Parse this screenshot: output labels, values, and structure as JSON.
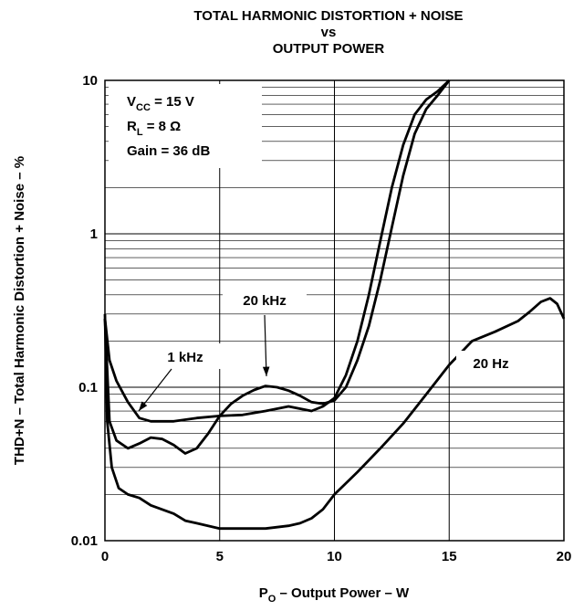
{
  "chart_data": {
    "type": "line",
    "title": [
      "TOTAL HARMONIC DISTORTION + NOISE",
      "vs",
      "OUTPUT POWER"
    ],
    "xlabel": {
      "main": "P",
      "sub": "O",
      "rest": " – Output Power – W"
    },
    "ylabel": "THD+N – Total Harmonic Distortion + Noise – %",
    "annotations": [
      {
        "main": "V",
        "sub": "CC",
        "rest": " = 15 V"
      },
      {
        "main": "R",
        "sub": "L",
        "rest": " = 8 Ω"
      },
      {
        "main": "Gain = 36 dB",
        "sub": "",
        "rest": ""
      }
    ],
    "xlim": [
      0,
      20
    ],
    "xticks": [
      0,
      5,
      10,
      15,
      20
    ],
    "ylim": [
      0.01,
      10
    ],
    "yticks": [
      0.01,
      0.1,
      1,
      10
    ],
    "log_y": true,
    "grid": true,
    "minor_grid": true,
    "series": [
      {
        "name": "1 kHz",
        "color": "#000000",
        "x": [
          0,
          0.2,
          0.5,
          1,
          1.5,
          2,
          3,
          4,
          5,
          6,
          7,
          8,
          9,
          9.5,
          10,
          10.5,
          11,
          11.5,
          12,
          12.5,
          13,
          13.5,
          14,
          14.5,
          15
        ],
        "values": [
          0.28,
          0.15,
          0.11,
          0.08,
          0.063,
          0.06,
          0.06,
          0.063,
          0.065,
          0.066,
          0.07,
          0.075,
          0.07,
          0.075,
          0.085,
          0.12,
          0.2,
          0.4,
          0.9,
          2,
          3.8,
          6,
          7.5,
          8.5,
          10
        ]
      },
      {
        "name": "20 kHz",
        "color": "#000000",
        "x": [
          0,
          0.2,
          0.5,
          1,
          1.5,
          2,
          2.5,
          3,
          3.5,
          4,
          4.5,
          5,
          5.5,
          6,
          6.5,
          7,
          7.5,
          8,
          8.5,
          9,
          9.5,
          10,
          10.5,
          11,
          11.5,
          12,
          12.5,
          13,
          13.5,
          14,
          14.5,
          15
        ],
        "values": [
          0.28,
          0.06,
          0.045,
          0.04,
          0.043,
          0.047,
          0.046,
          0.042,
          0.037,
          0.04,
          0.05,
          0.065,
          0.078,
          0.088,
          0.096,
          0.102,
          0.1,
          0.095,
          0.088,
          0.08,
          0.078,
          0.082,
          0.1,
          0.15,
          0.25,
          0.5,
          1.1,
          2.4,
          4.5,
          6.5,
          8,
          10
        ]
      },
      {
        "name": "20 Hz",
        "color": "#000000",
        "x": [
          0,
          0.1,
          0.3,
          0.6,
          1,
          1.5,
          2,
          3,
          3.5,
          4,
          5,
          6,
          7,
          8,
          8.5,
          9,
          9.5,
          10,
          11,
          12,
          13,
          14,
          15,
          16,
          17,
          18,
          18.5,
          19,
          19.4,
          19.7,
          20
        ],
        "values": [
          0.3,
          0.06,
          0.03,
          0.022,
          0.02,
          0.019,
          0.017,
          0.015,
          0.0135,
          0.013,
          0.012,
          0.012,
          0.012,
          0.0125,
          0.013,
          0.014,
          0.016,
          0.02,
          0.028,
          0.04,
          0.058,
          0.09,
          0.14,
          0.2,
          0.23,
          0.27,
          0.31,
          0.36,
          0.38,
          0.35,
          0.28
        ]
      }
    ]
  }
}
